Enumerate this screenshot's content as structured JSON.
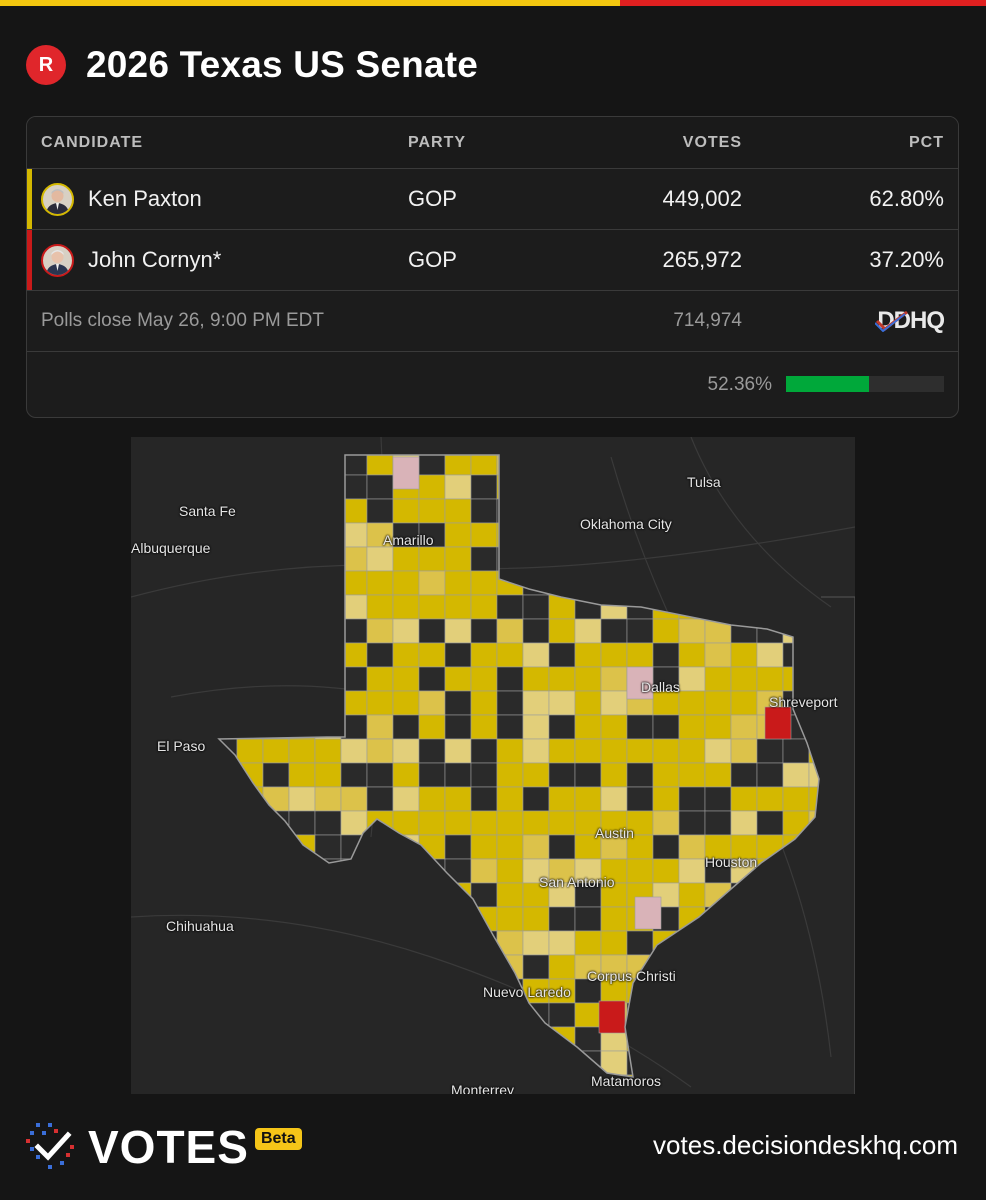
{
  "colors": {
    "bar_left": "#f3c70f",
    "bar_right": "#e02020",
    "party_badge": "#e0262b",
    "paxton": "#d4b800",
    "cornyn": "#c91a1a",
    "progress": "#00a83a"
  },
  "header": {
    "party_badge": "R",
    "title": "2026 Texas US Senate"
  },
  "table": {
    "columns": [
      "CANDIDATE",
      "PARTY",
      "VOTES",
      "PCT"
    ],
    "candidates": [
      {
        "name": "Ken Paxton",
        "party": "GOP",
        "votes": "449,002",
        "pct": "62.80%"
      },
      {
        "name": "John Cornyn*",
        "party": "GOP",
        "votes": "265,972",
        "pct": "37.20%"
      }
    ],
    "polls_close": "Polls close May 26, 9:00 PM EDT",
    "total_votes": "714,974",
    "source_logo_text": "DDHQ",
    "reporting_label": "52.36%",
    "reporting_fraction": 0.5236
  },
  "map": {
    "labels": {
      "santa_fe": "Santa Fe",
      "albuquerque": "Albuquerque",
      "amarillo": "Amarillo",
      "tulsa": "Tulsa",
      "oklahoma_city": "Oklahoma City",
      "dallas": "Dallas",
      "shreveport": "Shreveport",
      "el_paso": "El Paso",
      "austin": "Austin",
      "houston": "Houston",
      "san_antonio": "San Antonio",
      "chihuahua": "Chihuahua",
      "corpus_christi": "Corpus Christi",
      "nuevo_laredo": "Nuevo Laredo",
      "matamoros": "Matamoros",
      "monterrey": "Monterrey"
    }
  },
  "footer": {
    "wordmark": "VOTES",
    "beta": "Beta",
    "url": "votes.decisiondeskhq.com"
  }
}
